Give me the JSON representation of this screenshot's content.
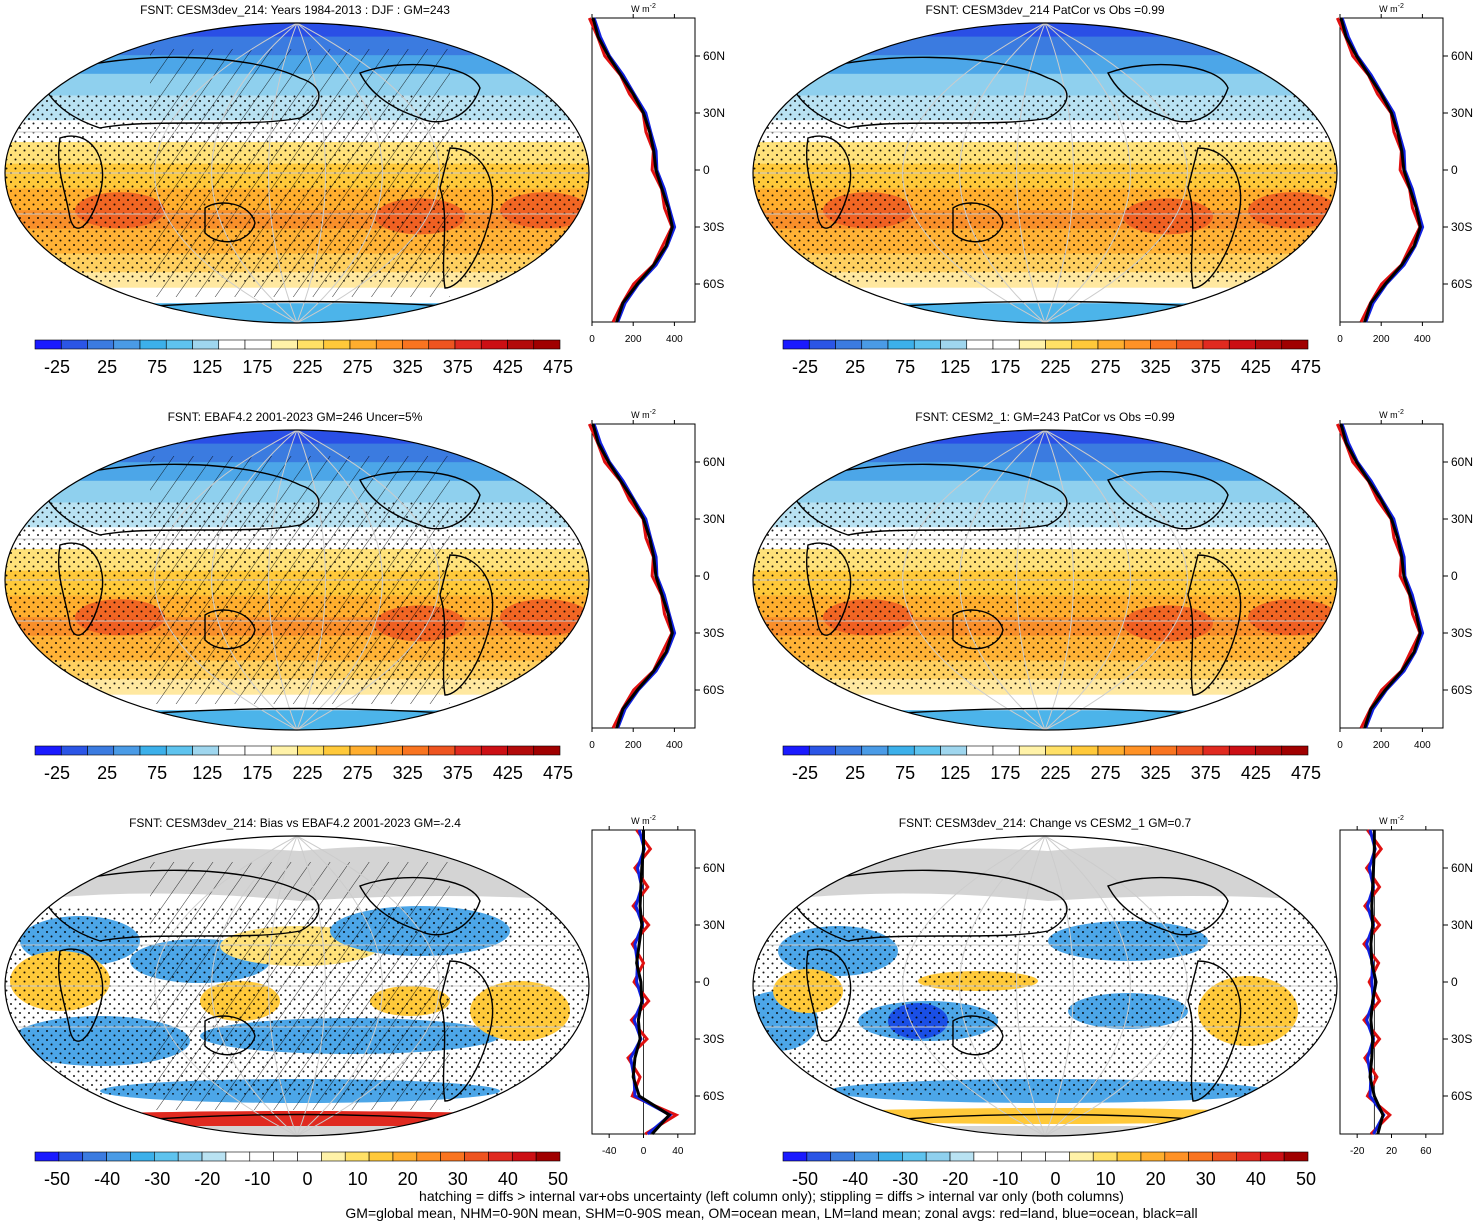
{
  "panels": [
    {
      "title": "FSNT: CESM3dev_214: Years 1984-2013 : DJF : GM=243",
      "cbar_ticks": [
        "-25",
        "25",
        "75",
        "125",
        "175",
        "225",
        "275",
        "325",
        "375",
        "425",
        "475"
      ],
      "xticks": [
        "0",
        "200",
        "400"
      ],
      "mode": "abs",
      "hatch": true
    },
    {
      "title": "FSNT: CESM3dev_214 PatCor vs Obs =0.99",
      "cbar_ticks": [
        "-25",
        "25",
        "75",
        "125",
        "175",
        "225",
        "275",
        "325",
        "375",
        "425",
        "475"
      ],
      "xticks": [
        "0",
        "200",
        "400"
      ],
      "mode": "abs",
      "hatch": false
    },
    {
      "title": "FSNT: EBAF4.2 2001-2023 GM=246 Uncer=5%",
      "cbar_ticks": [
        "-25",
        "25",
        "75",
        "125",
        "175",
        "225",
        "275",
        "325",
        "375",
        "425",
        "475"
      ],
      "xticks": [
        "0",
        "200",
        "400"
      ],
      "mode": "abs",
      "hatch": true
    },
    {
      "title": "FSNT: CESM2_1: GM=243 PatCor vs Obs =0.99",
      "cbar_ticks": [
        "-25",
        "25",
        "75",
        "125",
        "175",
        "225",
        "275",
        "325",
        "375",
        "425",
        "475"
      ],
      "xticks": [
        "0",
        "200",
        "400"
      ],
      "mode": "abs",
      "hatch": false
    },
    {
      "title": "FSNT: CESM3dev_214: Bias vs EBAF4.2 2001-2023 GM=-2.4",
      "cbar_ticks": [
        "-50",
        "-40",
        "-30",
        "-20",
        "-10",
        "0",
        "10",
        "20",
        "30",
        "40",
        "50"
      ],
      "xticks": [
        "-40",
        "0",
        "40"
      ],
      "mode": "diff",
      "hatch": true
    },
    {
      "title": "FSNT: CESM3dev_214: Change vs CESM2_1 GM=0.7",
      "cbar_ticks": [
        "-50",
        "-40",
        "-30",
        "-20",
        "-10",
        "0",
        "10",
        "20",
        "30",
        "40",
        "50"
      ],
      "xticks": [
        "-20",
        "20",
        "60"
      ],
      "mode": "diff",
      "hatch": false
    }
  ],
  "zonal_units": "W m",
  "zonal_units_sup": "-2",
  "lat_ticks": [
    "60N",
    "30N",
    "0",
    "30S",
    "60S"
  ],
  "footer": {
    "line1": "hatching = diffs > internal var+obs uncertainty (left column only); stippling = diffs > internal var only (both columns)",
    "line2": "GM=global mean, NHM=0-90N mean, SHM=0-90S mean, OM=ocean mean, LM=land mean; zonal avgs: red=land, blue=ocean, black=all"
  },
  "colors": {
    "abs_scale": [
      "#1a1aff",
      "#2b55e6",
      "#3b7be0",
      "#4a9be6",
      "#3cb0ea",
      "#5ec3ee",
      "#9fd6ee",
      "#ffffff",
      "#ffffff",
      "#fff2a8",
      "#ffe066",
      "#ffc93a",
      "#ffae2e",
      "#ff9226",
      "#f97420",
      "#ee5420",
      "#e02a20",
      "#cc0f14",
      "#b30a0a",
      "#a00000"
    ],
    "diff_scale": [
      "#1a1aff",
      "#2b55e6",
      "#3b7be0",
      "#4a9be6",
      "#3cb0ea",
      "#5ec3ee",
      "#8fd0ee",
      "#b9e2f2",
      "#ffffff",
      "#ffffff",
      "#ffffff",
      "#ffffff",
      "#fff2a8",
      "#ffe066",
      "#ffc93a",
      "#ffae2e",
      "#ff9226",
      "#f97420",
      "#ee5420",
      "#e02a20",
      "#cc0f14",
      "#a00000"
    ],
    "land_line": "#e01010",
    "ocean_line": "#1020e0",
    "all_line": "#000000"
  },
  "chart_data": [
    {
      "type": "heatmap",
      "title": "FSNT: CESM3dev_214: Years 1984-2013 : DJF : GM=243",
      "colorbar_range": [
        -25,
        475
      ],
      "zonal_profile": {
        "lat": [
          80,
          70,
          60,
          50,
          40,
          30,
          20,
          10,
          0,
          -10,
          -20,
          -30,
          -40,
          -50,
          -60,
          -70,
          -80
        ],
        "all": [
          5,
          30,
          80,
          140,
          200,
          250,
          280,
          300,
          310,
          340,
          370,
          390,
          360,
          300,
          220,
          150,
          120
        ]
      }
    },
    {
      "type": "heatmap",
      "title": "FSNT: CESM3dev_214 PatCor vs Obs =0.99",
      "colorbar_range": [
        -25,
        475
      ],
      "zonal_profile": {
        "lat": [
          80,
          70,
          60,
          50,
          40,
          30,
          20,
          10,
          0,
          -10,
          -20,
          -30,
          -40,
          -50,
          -60,
          -70,
          -80
        ],
        "all": [
          5,
          30,
          80,
          140,
          200,
          250,
          280,
          300,
          310,
          340,
          370,
          390,
          360,
          300,
          220,
          150,
          120
        ]
      }
    },
    {
      "type": "heatmap",
      "title": "FSNT: EBAF4.2 2001-2023 GM=246 Uncer=5%",
      "colorbar_range": [
        -25,
        475
      ],
      "zonal_profile": {
        "lat": [
          80,
          70,
          60,
          50,
          40,
          30,
          20,
          10,
          0,
          -10,
          -20,
          -30,
          -40,
          -50,
          -60,
          -70,
          -80
        ],
        "all": [
          5,
          30,
          80,
          140,
          200,
          250,
          280,
          300,
          310,
          340,
          370,
          390,
          360,
          300,
          220,
          150,
          120
        ]
      }
    },
    {
      "type": "heatmap",
      "title": "FSNT: CESM2_1: GM=243 PatCor vs Obs =0.99",
      "colorbar_range": [
        -25,
        475
      ],
      "zonal_profile": {
        "lat": [
          80,
          70,
          60,
          50,
          40,
          30,
          20,
          10,
          0,
          -10,
          -20,
          -30,
          -40,
          -50,
          -60,
          -70,
          -80
        ],
        "all": [
          5,
          30,
          80,
          140,
          200,
          250,
          280,
          300,
          310,
          340,
          370,
          390,
          360,
          300,
          220,
          150,
          120
        ]
      }
    },
    {
      "type": "heatmap",
      "title": "FSNT: CESM3dev_214: Bias vs EBAF4.2 2001-2023 GM=-2.4",
      "colorbar_range": [
        -50,
        50
      ],
      "zonal_profile": {
        "lat": [
          80,
          70,
          60,
          50,
          40,
          30,
          20,
          10,
          0,
          -10,
          -20,
          -30,
          -40,
          -50,
          -60,
          -70,
          -80
        ],
        "all": [
          0,
          0,
          -2,
          -3,
          -4,
          -2,
          -5,
          -8,
          -3,
          -2,
          -6,
          -4,
          -10,
          -12,
          -5,
          30,
          10
        ]
      }
    },
    {
      "type": "heatmap",
      "title": "FSNT: CESM3dev_214: Change vs CESM2_1 GM=0.7",
      "colorbar_range": [
        -50,
        50
      ],
      "zonal_profile": {
        "lat": [
          80,
          70,
          60,
          50,
          40,
          30,
          20,
          10,
          0,
          -10,
          -20,
          -30,
          -40,
          -50,
          -60,
          -70,
          -80
        ],
        "all": [
          0,
          0,
          -1,
          -2,
          -3,
          -2,
          -4,
          -3,
          2,
          -2,
          -4,
          -2,
          -3,
          -5,
          0,
          10,
          4
        ]
      }
    }
  ]
}
